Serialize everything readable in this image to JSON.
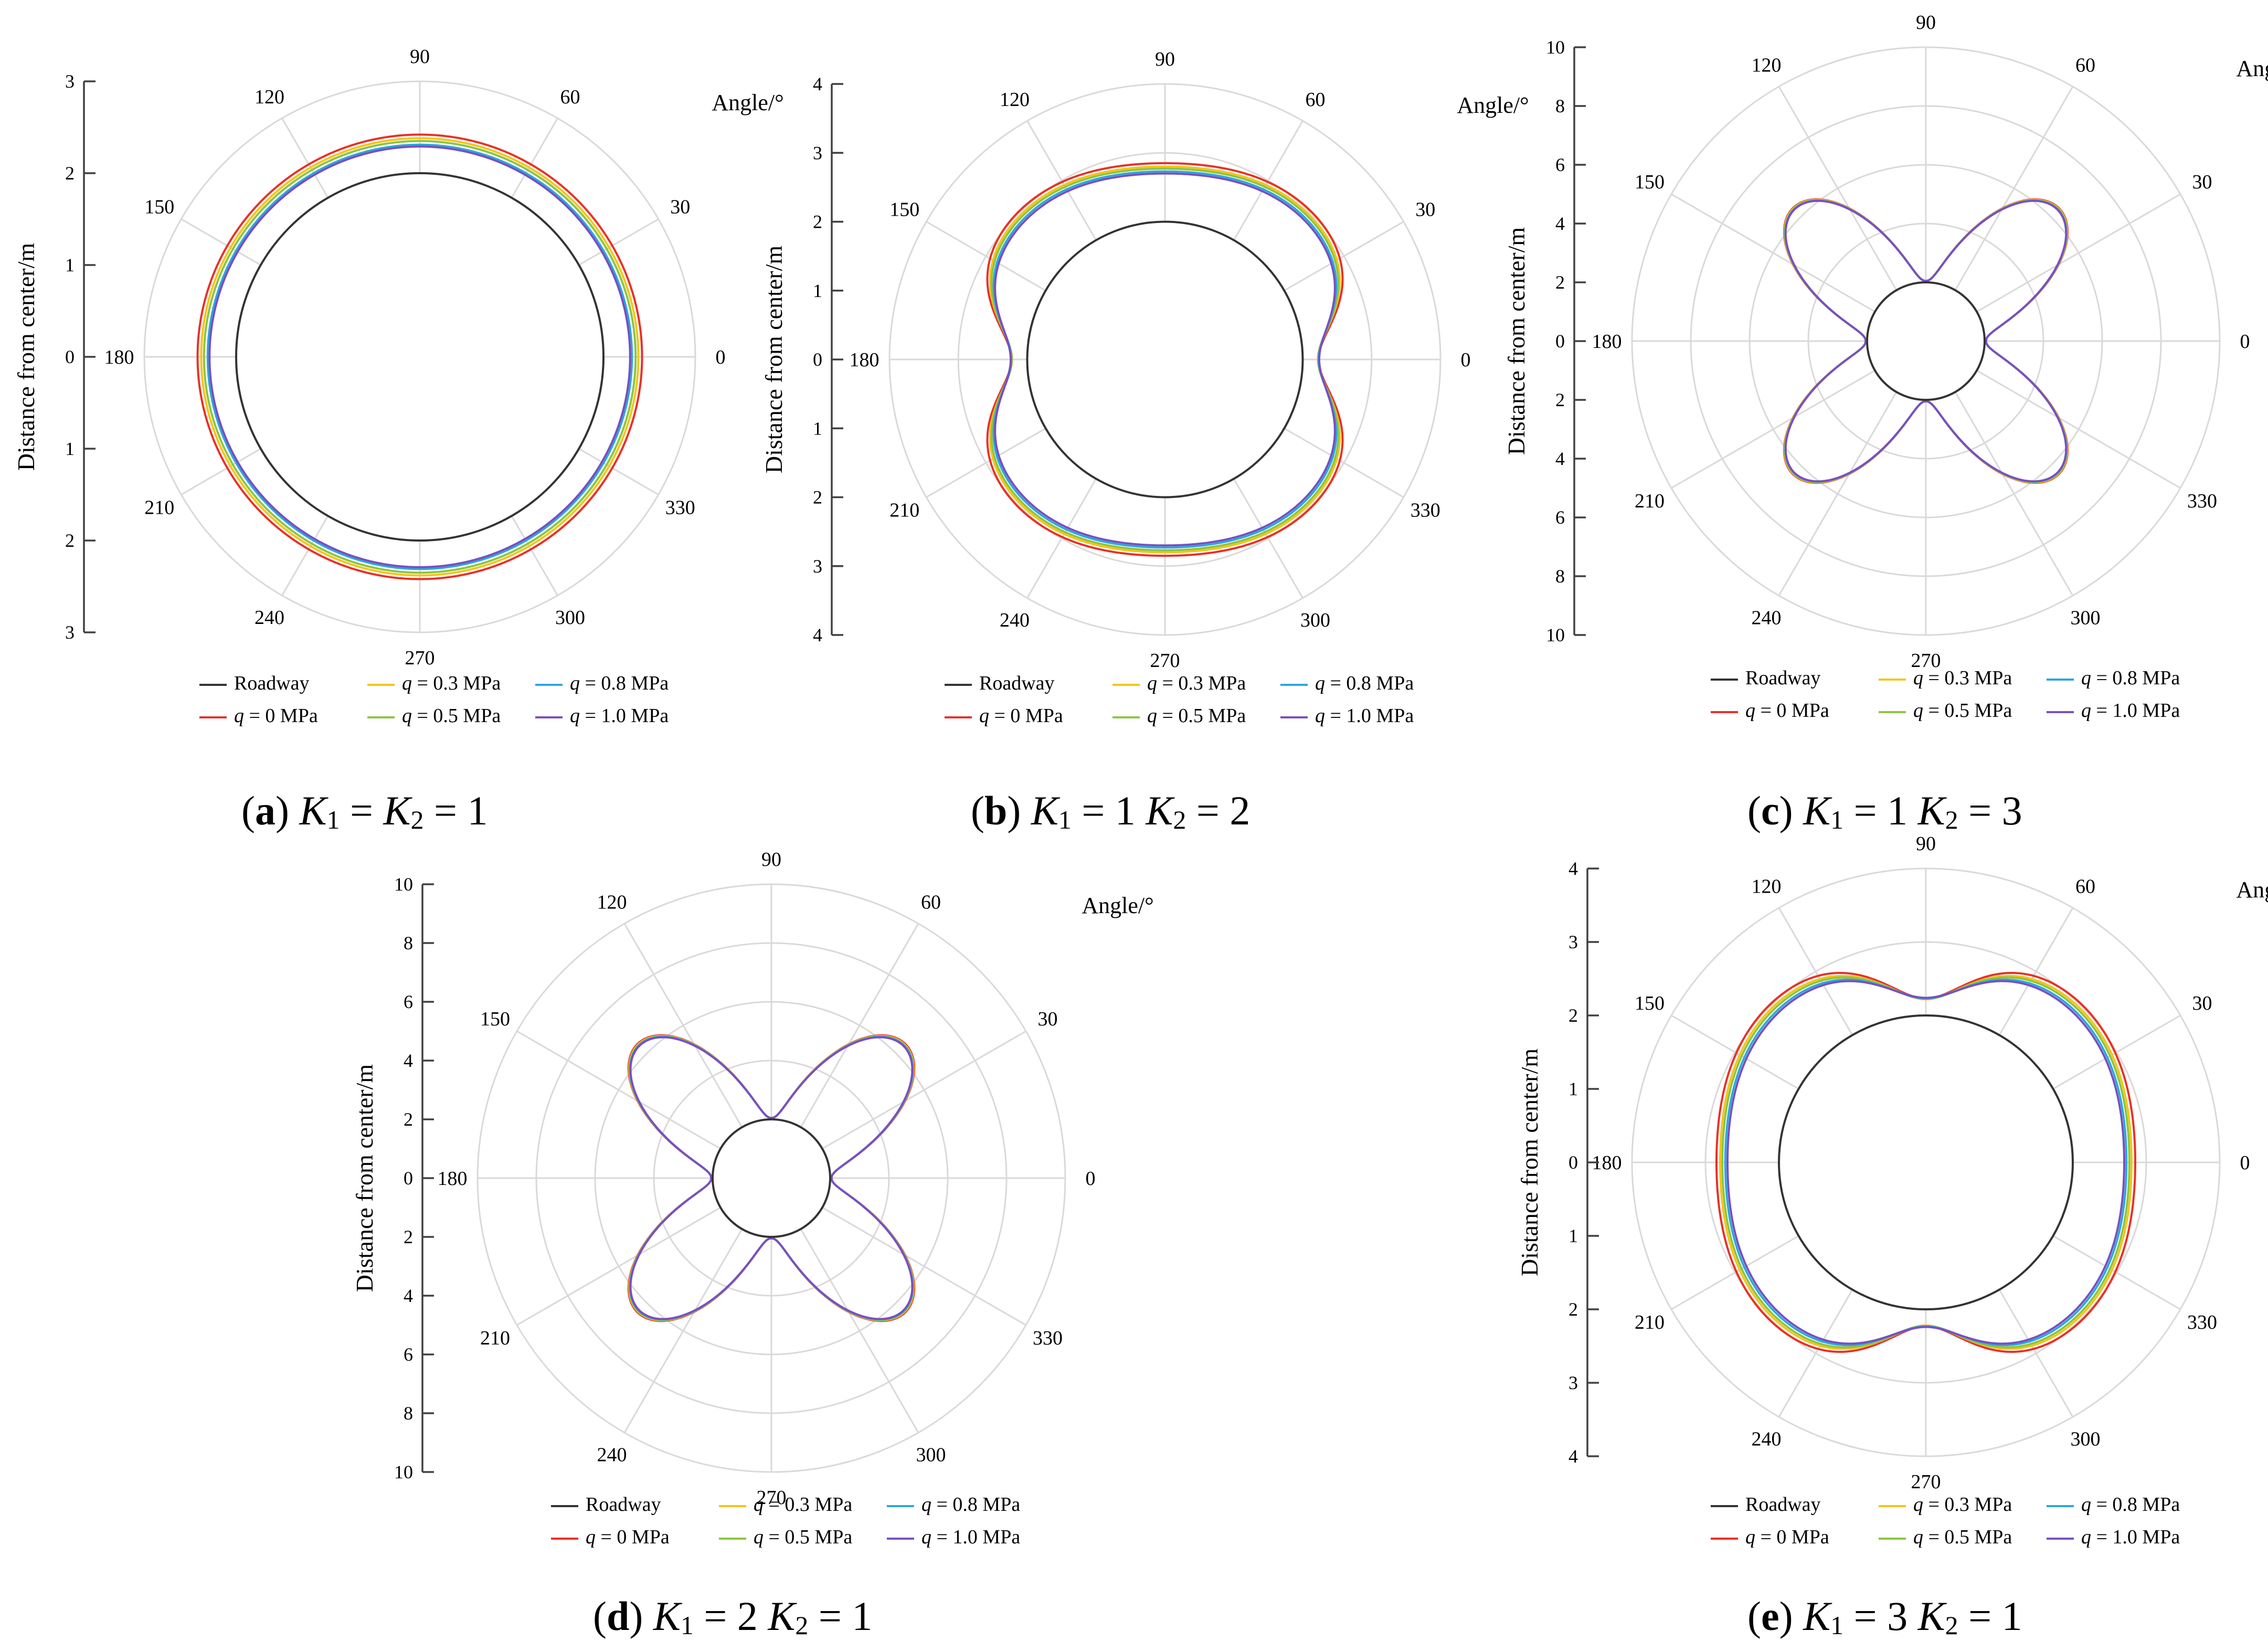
{
  "legend": {
    "roadway": "Roadway",
    "series": [
      {
        "name": "q = 0 MPa",
        "q": "q",
        "rest": " = 0 MPa",
        "color": "#e8302a"
      },
      {
        "name": "q = 0.3 MPa",
        "q": "q",
        "rest": " = 0.3 MPa",
        "color": "#f5c518"
      },
      {
        "name": "q = 0.5 MPa",
        "q": "q",
        "rest": " = 0.5 MPa",
        "color": "#8cc63f"
      },
      {
        "name": "q = 0.8 MPa",
        "q": "q",
        "rest": " = 0.8 MPa",
        "color": "#2aa7e0"
      },
      {
        "name": "q = 1.0 MPa",
        "q": "q",
        "rest": " = 1.0 MPa",
        "color": "#7a4fbf"
      }
    ]
  },
  "angle_labels": [
    "0",
    "30",
    "60",
    "90",
    "120",
    "150",
    "180",
    "210",
    "240",
    "270",
    "300",
    "330"
  ],
  "angle_title": "Angle/°",
  "y_axis_label": "Distance from center/m",
  "chart_data": [
    {
      "id": "a",
      "type": "polar",
      "caption": {
        "letter": "a",
        "k1": "1",
        "k2": "1",
        "form": "equal"
      },
      "rmax": 3,
      "ticks_outer": [
        "3",
        "2",
        "1",
        "0",
        "1",
        "2",
        "3"
      ],
      "roadway_radius": 2,
      "K1": 1,
      "K2": 1,
      "series_radius_base": [
        2.42,
        2.38,
        2.35,
        2.31,
        2.29
      ]
    },
    {
      "id": "b",
      "type": "polar",
      "caption": {
        "letter": "b",
        "k1": "1",
        "k2": "2",
        "form": "pair"
      },
      "rmax": 4,
      "ticks_outer": [
        "4",
        "3",
        "2",
        "1",
        "0",
        "1",
        "2",
        "3",
        "4"
      ],
      "roadway_radius": 2,
      "K1": 1,
      "K2": 2,
      "series_radius_base": [
        2.85,
        2.8,
        2.77,
        2.73,
        2.7
      ]
    },
    {
      "id": "c",
      "type": "polar",
      "caption": {
        "letter": "c",
        "k1": "1",
        "k2": "3",
        "form": "pair"
      },
      "rmax": 10,
      "ticks_outer": [
        "10",
        "8",
        "6",
        "4",
        "2",
        "0",
        "2",
        "4",
        "6",
        "8",
        "10"
      ],
      "roadway_radius": 2,
      "K1": 1,
      "K2": 3,
      "series_radius_base": [
        6.4,
        6.38,
        6.36,
        6.34,
        6.33
      ]
    },
    {
      "id": "d",
      "type": "polar",
      "caption": {
        "letter": "d",
        "k1": "2",
        "k2": "1",
        "form": "pair"
      },
      "rmax": 10,
      "ticks_outer": [
        "10",
        "8",
        "6",
        "4",
        "2",
        "0",
        "2",
        "4",
        "6",
        "8",
        "10"
      ],
      "roadway_radius": 2,
      "K1": 2,
      "K2": 1,
      "series_radius_base": [
        6.45,
        6.42,
        6.4,
        6.38,
        6.36
      ]
    },
    {
      "id": "e",
      "type": "polar",
      "caption": {
        "letter": "e",
        "k1": "3",
        "k2": "1",
        "form": "pair"
      },
      "rmax": 4,
      "ticks_outer": [
        "4",
        "3",
        "2",
        "1",
        "0",
        "1",
        "2",
        "3",
        "4"
      ],
      "roadway_radius": 2,
      "K1": 3,
      "K2": 1,
      "series_radius_base": [
        2.85,
        2.8,
        2.77,
        2.73,
        2.7
      ]
    }
  ]
}
